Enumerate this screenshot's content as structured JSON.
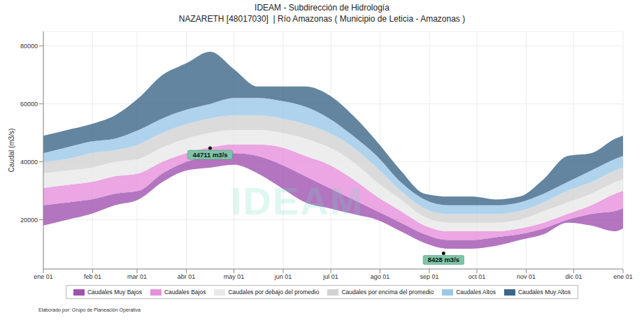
{
  "chart_data": {
    "type": "area",
    "title": "IDEAM - Subdirección de Hidrología",
    "subtitle": "NAZARETH [48017030]  | Río Amazonas ( Municipio de Leticia - Amazonas )",
    "y_label": "Caudal (m3/s)",
    "caption": "Elaborado por: Grupo de Planeación Operativa",
    "watermark": "IDEAM",
    "x": [
      0,
      15,
      30,
      45,
      60,
      75,
      90,
      105,
      120,
      135,
      150,
      165,
      180,
      195,
      210,
      225,
      240,
      255,
      270,
      285,
      300,
      315,
      330,
      345,
      360,
      365
    ],
    "xlim": [
      0,
      365
    ],
    "xticks": [
      {
        "value": 0,
        "label": "ene 01"
      },
      {
        "value": 31,
        "label": "feb 01"
      },
      {
        "value": 59,
        "label": "mar 01"
      },
      {
        "value": 90,
        "label": "abr 01"
      },
      {
        "value": 120,
        "label": "may 01"
      },
      {
        "value": 151,
        "label": "jun 01"
      },
      {
        "value": 181,
        "label": "jul 01"
      },
      {
        "value": 212,
        "label": "ago 01"
      },
      {
        "value": 243,
        "label": "sep 01"
      },
      {
        "value": 273,
        "label": "oct 01"
      },
      {
        "value": 304,
        "label": "nov 01"
      },
      {
        "value": 334,
        "label": "dic 01"
      },
      {
        "value": 365,
        "label": "ene 01"
      }
    ],
    "ylim": [
      3000,
      85000
    ],
    "yticks": [
      20000,
      40000,
      60000,
      80000
    ],
    "grid": true,
    "legend": "bottom",
    "series": [
      {
        "name": "Caudales Muy Bajos",
        "color": "#a052b0",
        "values": [
          [
            18000,
            25000
          ],
          [
            20000,
            26000
          ],
          [
            22000,
            27000
          ],
          [
            25000,
            29000
          ],
          [
            27000,
            30000
          ],
          [
            33000,
            36000
          ],
          [
            37000,
            40000
          ],
          [
            38000,
            42000
          ],
          [
            39000,
            43000
          ],
          [
            36000,
            42000
          ],
          [
            31000,
            39000
          ],
          [
            26000,
            35000
          ],
          [
            24000,
            31000
          ],
          [
            22000,
            27000
          ],
          [
            20000,
            23000
          ],
          [
            16000,
            19000
          ],
          [
            12000,
            15000
          ],
          [
            10000,
            13000
          ],
          [
            10000,
            13000
          ],
          [
            11000,
            14000
          ],
          [
            13000,
            15000
          ],
          [
            15000,
            17000
          ],
          [
            19000,
            20000
          ],
          [
            18000,
            22000
          ],
          [
            16000,
            23000
          ],
          [
            17000,
            24000
          ]
        ]
      },
      {
        "name": "Caudales Bajos",
        "color": "#e690dc",
        "values": [
          [
            25000,
            31000
          ],
          [
            26000,
            32000
          ],
          [
            27000,
            33000
          ],
          [
            29000,
            35000
          ],
          [
            30000,
            36000
          ],
          [
            36000,
            40000
          ],
          [
            40000,
            43000
          ],
          [
            42000,
            45000
          ],
          [
            43000,
            46000
          ],
          [
            42000,
            46000
          ],
          [
            39000,
            45000
          ],
          [
            35000,
            42000
          ],
          [
            31000,
            39000
          ],
          [
            27000,
            34000
          ],
          [
            23000,
            28000
          ],
          [
            19000,
            23000
          ],
          [
            15000,
            18000
          ],
          [
            13000,
            16000
          ],
          [
            13000,
            16000
          ],
          [
            14000,
            16000
          ],
          [
            15000,
            17000
          ],
          [
            17000,
            19000
          ],
          [
            20000,
            22000
          ],
          [
            22000,
            25000
          ],
          [
            23000,
            29000
          ],
          [
            24000,
            30000
          ]
        ]
      },
      {
        "name": "Caudales por debajo del promedio",
        "color": "#e9e9e9",
        "values": [
          [
            31000,
            36000
          ],
          [
            32000,
            37000
          ],
          [
            33000,
            38000
          ],
          [
            35000,
            40000
          ],
          [
            36000,
            41000
          ],
          [
            40000,
            45000
          ],
          [
            43000,
            48000
          ],
          [
            45000,
            50000
          ],
          [
            46000,
            51000
          ],
          [
            46000,
            51000
          ],
          [
            45000,
            50000
          ],
          [
            42000,
            48000
          ],
          [
            39000,
            45000
          ],
          [
            34000,
            40000
          ],
          [
            28000,
            33000
          ],
          [
            23000,
            27000
          ],
          [
            18000,
            21000
          ],
          [
            16000,
            19000
          ],
          [
            16000,
            19000
          ],
          [
            16000,
            19000
          ],
          [
            17000,
            20000
          ],
          [
            19000,
            23000
          ],
          [
            22000,
            26000
          ],
          [
            25000,
            29000
          ],
          [
            29000,
            33000
          ],
          [
            30000,
            34000
          ]
        ]
      },
      {
        "name": "Caudales por encima del promedio",
        "color": "#d2d2d2",
        "values": [
          [
            36000,
            40000
          ],
          [
            37000,
            41000
          ],
          [
            38000,
            43000
          ],
          [
            40000,
            44000
          ],
          [
            41000,
            46000
          ],
          [
            45000,
            50000
          ],
          [
            48000,
            53000
          ],
          [
            50000,
            55000
          ],
          [
            51000,
            56000
          ],
          [
            51000,
            56000
          ],
          [
            50000,
            55000
          ],
          [
            48000,
            53000
          ],
          [
            45000,
            50000
          ],
          [
            40000,
            45000
          ],
          [
            33000,
            38000
          ],
          [
            27000,
            30000
          ],
          [
            21000,
            24000
          ],
          [
            19000,
            22000
          ],
          [
            19000,
            22000
          ],
          [
            19000,
            22000
          ],
          [
            20000,
            23000
          ],
          [
            23000,
            26000
          ],
          [
            26000,
            30000
          ],
          [
            29000,
            33000
          ],
          [
            33000,
            37000
          ],
          [
            34000,
            38000
          ]
        ]
      },
      {
        "name": "Caudales Altos",
        "color": "#9cc8e8",
        "values": [
          [
            40000,
            43000
          ],
          [
            41000,
            45000
          ],
          [
            43000,
            47000
          ],
          [
            44000,
            48000
          ],
          [
            46000,
            51000
          ],
          [
            50000,
            55000
          ],
          [
            53000,
            58000
          ],
          [
            55000,
            60000
          ],
          [
            56000,
            62000
          ],
          [
            56000,
            62000
          ],
          [
            55000,
            61000
          ],
          [
            53000,
            59000
          ],
          [
            50000,
            55000
          ],
          [
            45000,
            49000
          ],
          [
            38000,
            42000
          ],
          [
            30000,
            33000
          ],
          [
            24000,
            27000
          ],
          [
            22000,
            25000
          ],
          [
            22000,
            25000
          ],
          [
            22000,
            25000
          ],
          [
            23000,
            26000
          ],
          [
            26000,
            29000
          ],
          [
            30000,
            33000
          ],
          [
            33000,
            37000
          ],
          [
            37000,
            41000
          ],
          [
            38000,
            42000
          ]
        ]
      },
      {
        "name": "Caudales Muy Altos",
        "color": "#3d6688",
        "values": [
          [
            43000,
            49000
          ],
          [
            45000,
            51000
          ],
          [
            47000,
            53000
          ],
          [
            48000,
            56000
          ],
          [
            51000,
            62000
          ],
          [
            55000,
            70000
          ],
          [
            58000,
            74000
          ],
          [
            60000,
            78000
          ],
          [
            62000,
            72000
          ],
          [
            62000,
            66000
          ],
          [
            61000,
            66000
          ],
          [
            59000,
            66000
          ],
          [
            55000,
            63000
          ],
          [
            49000,
            56000
          ],
          [
            42000,
            47000
          ],
          [
            33000,
            37000
          ],
          [
            27000,
            29000
          ],
          [
            25000,
            28000
          ],
          [
            25000,
            28000
          ],
          [
            25000,
            27000
          ],
          [
            26000,
            28000
          ],
          [
            29000,
            34000
          ],
          [
            33000,
            42000
          ],
          [
            37000,
            43000
          ],
          [
            41000,
            48000
          ],
          [
            42000,
            49000
          ]
        ]
      }
    ],
    "annotations": [
      {
        "text": "44711 m3/s",
        "x": 105,
        "y": 44711
      },
      {
        "text": "8428 m3/s",
        "x": 252,
        "y": 8428
      }
    ]
  }
}
